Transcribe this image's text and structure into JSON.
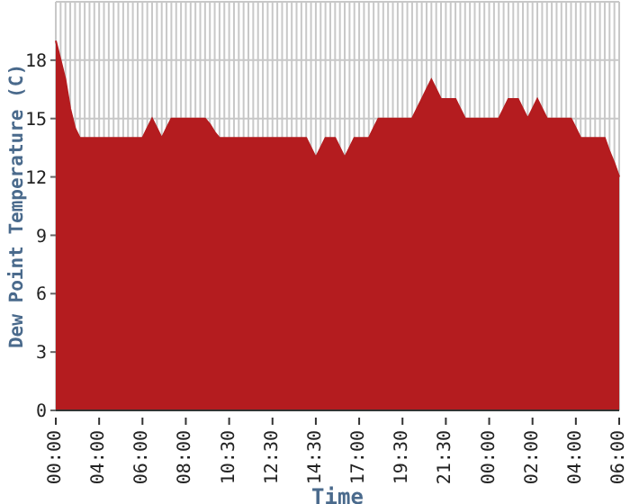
{
  "chart_data": {
    "type": "area",
    "xlabel": "Time",
    "ylabel": "Dew Point Temperature (C)",
    "categories": [
      "00:00",
      null,
      null,
      null,
      null,
      null,
      null,
      null,
      null,
      "04:00",
      null,
      null,
      null,
      null,
      null,
      null,
      null,
      null,
      "06:00",
      null,
      null,
      null,
      null,
      null,
      null,
      null,
      null,
      "08:00",
      null,
      null,
      null,
      null,
      null,
      null,
      null,
      null,
      "10:30",
      null,
      null,
      null,
      null,
      null,
      null,
      null,
      null,
      "12:30",
      null,
      null,
      null,
      null,
      null,
      null,
      null,
      null,
      "14:30",
      null,
      null,
      null,
      null,
      null,
      null,
      null,
      null,
      "17:00",
      null,
      null,
      null,
      null,
      null,
      null,
      null,
      null,
      "19:30",
      null,
      null,
      null,
      null,
      null,
      null,
      null,
      null,
      "21:30",
      null,
      null,
      null,
      null,
      null,
      null,
      null,
      null,
      "00:00",
      null,
      null,
      null,
      null,
      null,
      null,
      null,
      null,
      "02:00",
      null,
      null,
      null,
      null,
      null,
      null,
      null,
      null,
      "04:00",
      null,
      null,
      null,
      null,
      null,
      null,
      null,
      null,
      "06:00"
    ],
    "values": [
      19,
      18,
      17,
      15.5,
      14.5,
      14,
      14,
      14,
      14,
      14,
      14,
      14,
      14,
      14,
      14,
      14,
      14,
      14,
      14,
      14.5,
      15,
      14.5,
      14,
      14.5,
      15,
      15,
      15,
      15,
      15,
      15,
      15,
      15,
      14.7,
      14.3,
      14,
      14,
      14,
      14,
      14,
      14,
      14,
      14,
      14,
      14,
      14,
      14,
      14,
      14,
      14,
      14,
      14,
      14,
      14,
      13.5,
      13,
      13.5,
      14,
      14,
      14,
      13.5,
      13,
      13.5,
      14,
      14,
      14,
      14,
      14.5,
      15,
      15,
      15,
      15,
      15,
      15,
      15,
      15,
      15.5,
      16,
      16.5,
      17,
      16.5,
      16,
      16,
      16,
      16,
      15.5,
      15,
      15,
      15,
      15,
      15,
      15,
      15,
      15,
      15.5,
      16,
      16,
      16,
      15.5,
      15,
      15.5,
      16,
      15.5,
      15,
      15,
      15,
      15,
      15,
      15,
      14.5,
      14,
      14,
      14,
      14,
      14,
      14,
      13.3,
      12.7,
      12
    ],
    "color": "#b41c1f",
    "ylim": [
      0,
      21
    ],
    "yticks": [
      0,
      3,
      6,
      9,
      12,
      15,
      18
    ],
    "grid": true
  }
}
